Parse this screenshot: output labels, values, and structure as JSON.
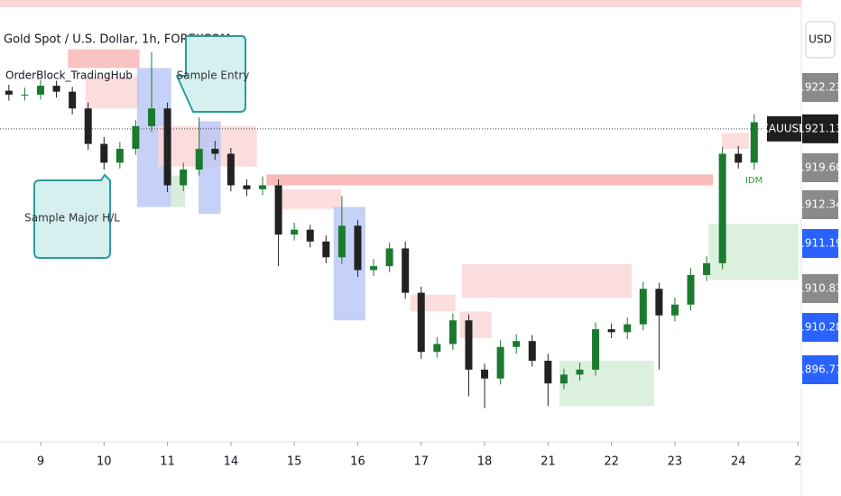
{
  "chart_data": {
    "type": "candlestick",
    "title": "Gold Spot / U.S. Dollar, 1h, FOREXCOM",
    "indicator": "OrderBlock_TradingHub",
    "currency": "USD",
    "symbol": "XAUUSD",
    "last_price": 1921.13,
    "up_color": "#1b7a2e",
    "down_color": "#222222",
    "xlim": [
      -0.64,
      11.95
    ],
    "ylim": [
      1891.2,
      1934.2
    ],
    "xticks": [
      {
        "value": 0,
        "label": "9"
      },
      {
        "value": 1,
        "label": "10"
      },
      {
        "value": 2,
        "label": "11"
      },
      {
        "value": 3,
        "label": "14"
      },
      {
        "value": 4,
        "label": "15"
      },
      {
        "value": 5,
        "label": "16"
      },
      {
        "value": 6,
        "label": "17"
      },
      {
        "value": 7,
        "label": "18"
      },
      {
        "value": 8,
        "label": "21"
      },
      {
        "value": 9,
        "label": "22"
      },
      {
        "value": 10,
        "label": "23"
      },
      {
        "value": 11,
        "label": "24"
      },
      {
        "value": 11.94,
        "label": "2"
      }
    ],
    "x": [
      -0.5,
      -0.25,
      0,
      0.25,
      0.5,
      0.75,
      1,
      1.25,
      1.5,
      1.75,
      2,
      2.25,
      2.5,
      2.75,
      3,
      3.25,
      3.5,
      3.75,
      4,
      4.25,
      4.5,
      4.75,
      5,
      5.25,
      5.5,
      5.75,
      6,
      6.25,
      6.5,
      6.75,
      7,
      7.25,
      7.5,
      7.75,
      8,
      8.25,
      8.5,
      8.75,
      9,
      9.25,
      9.5,
      9.75,
      10,
      10.25,
      10.5,
      10.75,
      11,
      11.25
    ],
    "open": [
      1925.0,
      1924.6,
      1924.6,
      1925.5,
      1924.9,
      1923.2,
      1919.6,
      1917.7,
      1919.1,
      1921.4,
      1923.2,
      1915.4,
      1917.0,
      1919.1,
      1918.6,
      1915.4,
      1915.0,
      1915.4,
      1910.4,
      1910.9,
      1909.7,
      1908.1,
      1911.3,
      1906.8,
      1907.2,
      1909.0,
      1904.5,
      1898.5,
      1899.3,
      1901.7,
      1896.7,
      1895.8,
      1899.0,
      1899.6,
      1897.6,
      1895.3,
      1896.2,
      1896.7,
      1900.8,
      1900.5,
      1901.3,
      1904.9,
      1902.2,
      1903.3,
      1906.3,
      1907.5,
      1918.6,
      1917.7
    ],
    "high": [
      1925.6,
      1925.3,
      1926.1,
      1926.0,
      1925.4,
      1923.8,
      1920.3,
      1919.8,
      1922.0,
      1928.9,
      1923.8,
      1917.7,
      1922.3,
      1919.9,
      1919.2,
      1916.0,
      1916.3,
      1916.0,
      1911.6,
      1911.4,
      1910.3,
      1914.3,
      1911.9,
      1907.9,
      1909.6,
      1909.7,
      1905.1,
      1900.0,
      1902.4,
      1902.3,
      1897.3,
      1899.7,
      1900.3,
      1900.2,
      1898.3,
      1896.8,
      1897.4,
      1901.5,
      1901.4,
      1902.0,
      1905.6,
      1905.5,
      1904.0,
      1907.0,
      1908.2,
      1919.3,
      1919.4,
      1922.6
    ],
    "low": [
      1924.0,
      1924.0,
      1924.1,
      1924.3,
      1922.6,
      1919.0,
      1917.0,
      1917.1,
      1918.5,
      1920.8,
      1914.7,
      1914.8,
      1916.4,
      1918.0,
      1914.8,
      1914.3,
      1914.4,
      1907.2,
      1909.8,
      1909.1,
      1907.5,
      1907.4,
      1906.1,
      1906.2,
      1906.6,
      1903.9,
      1897.8,
      1897.9,
      1898.7,
      1894.0,
      1892.8,
      1895.2,
      1898.3,
      1897.0,
      1893.0,
      1894.7,
      1895.6,
      1896.1,
      1899.9,
      1899.8,
      1900.7,
      1896.7,
      1901.6,
      1902.7,
      1905.7,
      1906.9,
      1917.1,
      1917.0
    ],
    "close": [
      1924.6,
      1924.6,
      1925.5,
      1924.9,
      1923.2,
      1919.6,
      1917.7,
      1919.1,
      1921.4,
      1923.2,
      1915.4,
      1917.0,
      1919.1,
      1918.6,
      1915.4,
      1915.0,
      1915.4,
      1910.4,
      1910.9,
      1909.7,
      1908.1,
      1911.3,
      1906.8,
      1907.2,
      1909.0,
      1904.5,
      1898.5,
      1899.3,
      1901.7,
      1896.7,
      1895.8,
      1899.0,
      1899.6,
      1897.6,
      1895.3,
      1896.2,
      1896.7,
      1900.8,
      1900.5,
      1901.3,
      1904.9,
      1902.2,
      1903.3,
      1906.3,
      1907.5,
      1918.6,
      1917.7,
      1921.8
    ],
    "zones": [
      {
        "x0": 0.43,
        "x1": 1.56,
        "y0": 1927.3,
        "y1": 1929.2,
        "color": "#f7b4b4"
      },
      {
        "x0": 0.71,
        "x1": 1.56,
        "y0": 1923.2,
        "y1": 1926.4,
        "color": "#fbd4d4"
      },
      {
        "x0": 1.52,
        "x1": 2.06,
        "y0": 1913.2,
        "y1": 1927.3,
        "color": "#b7c6f5"
      },
      {
        "x0": 1.85,
        "x1": 3.41,
        "y0": 1917.3,
        "y1": 1921.4,
        "color": "#fbd4d4"
      },
      {
        "x0": 2.49,
        "x1": 2.84,
        "y0": 1912.5,
        "y1": 1921.9,
        "color": "#b7c6f5"
      },
      {
        "x0": 2.06,
        "x1": 2.28,
        "y0": 1913.2,
        "y1": 1916.4,
        "color": "#cfe9d2"
      },
      {
        "x0": 3.56,
        "x1": 10.6,
        "y0": 1915.4,
        "y1": 1916.5,
        "color": "#f6a9a9"
      },
      {
        "x0": 3.77,
        "x1": 4.74,
        "y0": 1913.0,
        "y1": 1915.0,
        "color": "#fbd4d4"
      },
      {
        "x0": 4.62,
        "x1": 5.12,
        "y0": 1901.7,
        "y1": 1913.2,
        "color": "#b7c6f5"
      },
      {
        "x0": 5.83,
        "x1": 6.54,
        "y0": 1902.6,
        "y1": 1904.3,
        "color": "#fbd4d4"
      },
      {
        "x0": 6.64,
        "x1": 9.32,
        "y0": 1904.0,
        "y1": 1907.4,
        "color": "#fbd4d4"
      },
      {
        "x0": 6.61,
        "x1": 7.11,
        "y0": 1899.9,
        "y1": 1902.6,
        "color": "#fbd4d4"
      },
      {
        "x0": 8.18,
        "x1": 9.67,
        "y0": 1893.0,
        "y1": 1897.6,
        "color": "#d3ecd6"
      },
      {
        "x0": 10.53,
        "x1": 11.95,
        "y0": 1905.8,
        "y1": 1911.5,
        "color": "#d3ecd6"
      },
      {
        "x0": 10.74,
        "x1": 11.17,
        "y0": 1919.1,
        "y1": 1920.7,
        "color": "#fbd4d4"
      }
    ],
    "price_tags": [
      {
        "label": "1922.23",
        "color": "#8a8a8a"
      },
      {
        "label": "1919.60",
        "color": "#8a8a8a"
      },
      {
        "label": "1912.34",
        "color": "#8a8a8a"
      },
      {
        "label": "1911.19",
        "color": "#2962ff"
      },
      {
        "label": "1910.83",
        "color": "#8a8a8a"
      },
      {
        "label": "1910.28",
        "color": "#2962ff"
      },
      {
        "label": "1896.71",
        "color": "#2962ff"
      }
    ],
    "annotations": [
      "Sample Entry",
      "Sample Major H/L",
      "IDM"
    ]
  }
}
